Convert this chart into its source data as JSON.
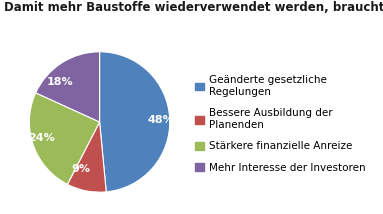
{
  "title": "Damit mehr Baustoffe wiederverwendet werden, braucht es:",
  "slices": [
    48,
    9,
    24,
    18
  ],
  "labels": [
    "48%",
    "9%",
    "24%",
    "18%"
  ],
  "colors": [
    "#4F81BD",
    "#C0504D",
    "#9BBB59",
    "#8064A2"
  ],
  "legend_labels": [
    "Geänderte gesetzliche\nRegelungen",
    "Bessere Ausbildung der\nPlanenden",
    "Stärkere finanzielle Anreize",
    "Mehr Interesse der Investoren"
  ],
  "start_angle": 90,
  "title_fontsize": 8.5,
  "label_fontsize": 8,
  "legend_fontsize": 7.5,
  "bg_color": "#ffffff"
}
